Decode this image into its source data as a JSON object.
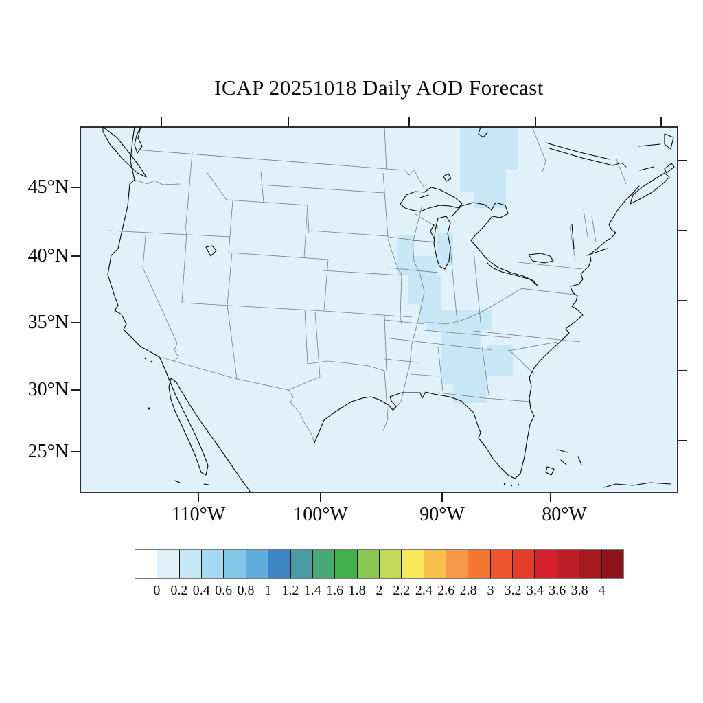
{
  "title": "ICAP 20251018 Daily AOD Forecast",
  "colors": {
    "page_background": "#ffffff",
    "map_fill": "#e1f1fa",
    "aod_patch": "#c8e7f6",
    "coastline": "#000000",
    "state_border": "#6e7e87",
    "frame": "#000000"
  },
  "map": {
    "lat_tick_labels": [
      "45°N",
      "40°N",
      "35°N",
      "30°N",
      "25°N"
    ],
    "lon_tick_labels": [
      "110°W",
      "100°W",
      "90°W",
      "80°W"
    ]
  },
  "colorbar": {
    "tick_labels": [
      "0",
      "0.2",
      "0.4",
      "0.6",
      "0.8",
      "1",
      "1.2",
      "1.4",
      "1.6",
      "1.8",
      "2",
      "2.2",
      "2.4",
      "2.6",
      "2.8",
      "3",
      "3.2",
      "3.4",
      "3.6",
      "3.8",
      "4"
    ],
    "colors": [
      "#ffffff",
      "#dff0f9",
      "#c6e7f6",
      "#a4d9f1",
      "#82c7e9",
      "#60addb",
      "#3d86c6",
      "#479ba2",
      "#49a877",
      "#42b24a",
      "#8bc853",
      "#c4d957",
      "#f8e65b",
      "#f7be4c",
      "#f79a47",
      "#f4772f",
      "#ee552d",
      "#e33d29",
      "#d5202b",
      "#be1e25",
      "#a6191e",
      "#8c1418"
    ]
  },
  "chart_data": {
    "type": "heatmap",
    "title": "ICAP 20251018 Daily AOD Forecast",
    "variable": "Aerosol Optical Depth (AOD), daily forecast",
    "region": "Continental United States with adjacent Canada, Mexico, Atlantic and Pacific",
    "lat_ticks": [
      "45°N",
      "40°N",
      "35°N",
      "30°N",
      "25°N"
    ],
    "lon_ticks": [
      "110°W",
      "100°W",
      "90°W",
      "80°W"
    ],
    "colorbar_levels": [
      0,
      0.2,
      0.4,
      0.6,
      0.8,
      1,
      1.2,
      1.4,
      1.6,
      1.8,
      2,
      2.2,
      2.4,
      2.6,
      2.8,
      3,
      3.2,
      3.4,
      3.6,
      3.8,
      4
    ],
    "aod_values": [
      {
        "area": "Most of CONUS, Canada, Mexico and surrounding oceans",
        "aod": "0-0.2"
      },
      {
        "area": "Ontario band north of Lakes Superior/Huron into Upper Michigan",
        "aod": "0.2-0.4"
      },
      {
        "area": "Wisconsin into central Illinois corridor",
        "aod": "0.2-0.4"
      },
      {
        "area": "Kentucky-Tennessee band",
        "aod": "0.2-0.4"
      },
      {
        "area": "Alabama into western Georgia",
        "aod": "0.2-0.4"
      }
    ]
  }
}
